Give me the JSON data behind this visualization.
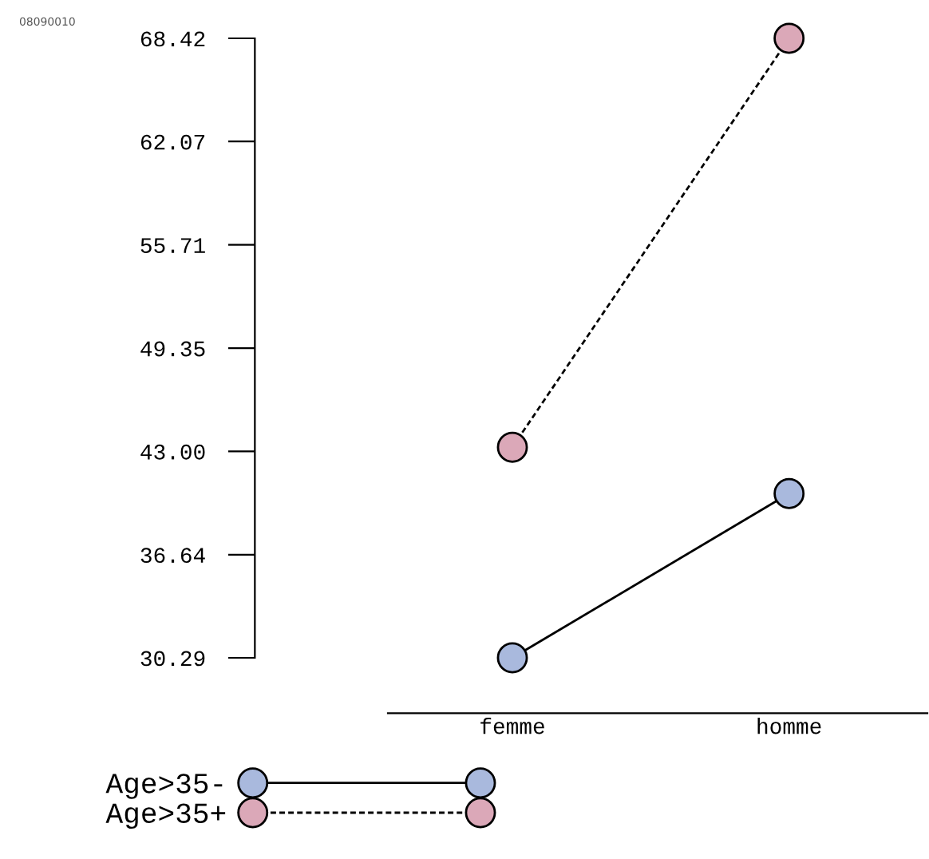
{
  "chart_data": {
    "type": "line",
    "categories": [
      "femme",
      "homme"
    ],
    "series": [
      {
        "name": "Age>35-",
        "color": "#a9b9dd",
        "values": [
          30.29,
          40.4
        ],
        "line_style": "solid"
      },
      {
        "name": "Age>35+",
        "color": "#dba8b8",
        "values": [
          43.25,
          68.42
        ],
        "line_style": "dashed"
      }
    ],
    "ylim": [
      30.29,
      68.42
    ],
    "yticks": [
      {
        "value": 30.29,
        "label": "30.29"
      },
      {
        "value": 36.64,
        "label": "36.64"
      },
      {
        "value": 43.0,
        "label": "43.00"
      },
      {
        "value": 49.35,
        "label": "49.35"
      },
      {
        "value": 55.71,
        "label": "55.71"
      },
      {
        "value": 62.07,
        "label": "62.07"
      },
      {
        "value": 68.42,
        "label": "68.42"
      }
    ],
    "marker": "circle",
    "legend": "bottom left",
    "grid": false,
    "annotations": [
      "08090010"
    ]
  }
}
